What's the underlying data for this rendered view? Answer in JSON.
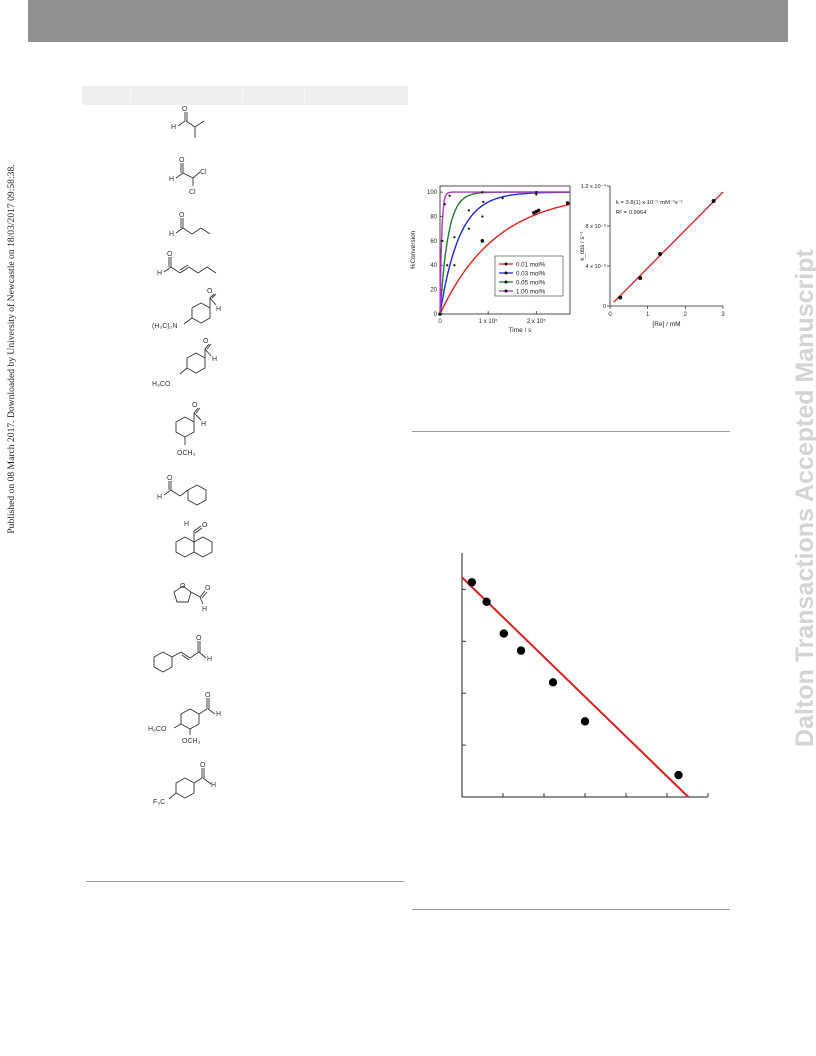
{
  "side_note": "Published on 08 March 2017. Downloaded by University of Newcastle on 18/03/2017 09:58:38.",
  "watermark": "Dalton Transactions Accepted Manuscript",
  "structure_labels": {
    "cl": "Cl",
    "me2n": "(H₃C)₂N",
    "h3co": "H₃CO",
    "och3": "OCH₃",
    "f3c": "F₃C",
    "h": "H",
    "o": "O"
  },
  "chart_data": [
    {
      "type": "line",
      "title": "",
      "xlabel": "Time / s",
      "ylabel": "%Conversion",
      "x_ticks": [
        "0",
        "1 x 10⁵",
        "2 x 10⁵"
      ],
      "y_ticks": [
        "0",
        "20",
        "40",
        "60",
        "80",
        "100"
      ],
      "xlim": [
        0,
        270000
      ],
      "ylim": [
        0,
        105
      ],
      "legend_position": "bottom-right",
      "series": [
        {
          "name": "0.01 mol%",
          "color": "#e0221b",
          "k": 8.5e-06,
          "x": [
            0,
            88000,
            195000,
            200000,
            205000,
            265000
          ],
          "y": [
            0,
            60,
            83,
            84,
            85,
            91
          ]
        },
        {
          "name": "0.03 mol%",
          "color": "#1b2bd6",
          "k": 2.5e-05,
          "x": [
            0,
            30000,
            60000,
            88000,
            130000,
            200000
          ],
          "y": [
            0,
            40,
            70,
            80,
            95,
            98
          ]
        },
        {
          "name": "0.05 mol%",
          "color": "#1f7a2b",
          "k": 6e-05,
          "x": [
            0,
            15000,
            30000,
            60000,
            90000
          ],
          "y": [
            0,
            40,
            63,
            85,
            92
          ]
        },
        {
          "name": "1.00 mol%",
          "color": "#b035c2",
          "k": 0.0003,
          "x": [
            0,
            5000,
            10000,
            20000,
            88000,
            200000
          ],
          "y": [
            0,
            60,
            90,
            97,
            100,
            100
          ]
        }
      ]
    },
    {
      "type": "scatter",
      "title": "",
      "xlabel": "[Re] / mM",
      "ylabel": "k_obs / s⁻¹",
      "x_ticks": [
        "0",
        "1",
        "2",
        "3"
      ],
      "y_ticks": [
        "0",
        "4 x 10⁻⁵",
        "8 x 10⁻⁵",
        "1.2 x 10⁻⁴"
      ],
      "xlim": [
        0,
        3
      ],
      "ylim": [
        0,
        0.00012
      ],
      "annotations": [
        "k = 3.8(1) x 10⁻⁵ mM⁻¹s⁻¹",
        "R² = 0.9964"
      ],
      "x": [
        0.27,
        0.8,
        1.33,
        2.75
      ],
      "y": [
        8.5e-06,
        2.8e-05,
        5.2e-05,
        0.000105
      ],
      "fit": {
        "slope": 3.8e-05,
        "intercept": 0.0,
        "x_range": [
          0.1,
          3.0
        ]
      }
    },
    {
      "type": "scatter",
      "title": "",
      "xlabel": "",
      "ylabel": "",
      "x": [
        0.2,
        0.5,
        0.85,
        1.2,
        1.85,
        2.5,
        4.4
      ],
      "y": [
        0.88,
        0.8,
        0.67,
        0.6,
        0.47,
        0.31,
        0.09
      ],
      "fit": {
        "x_range": [
          0.0,
          4.6
        ],
        "y_range": [
          0.9,
          0.0
        ]
      },
      "color": "#d52020"
    }
  ]
}
